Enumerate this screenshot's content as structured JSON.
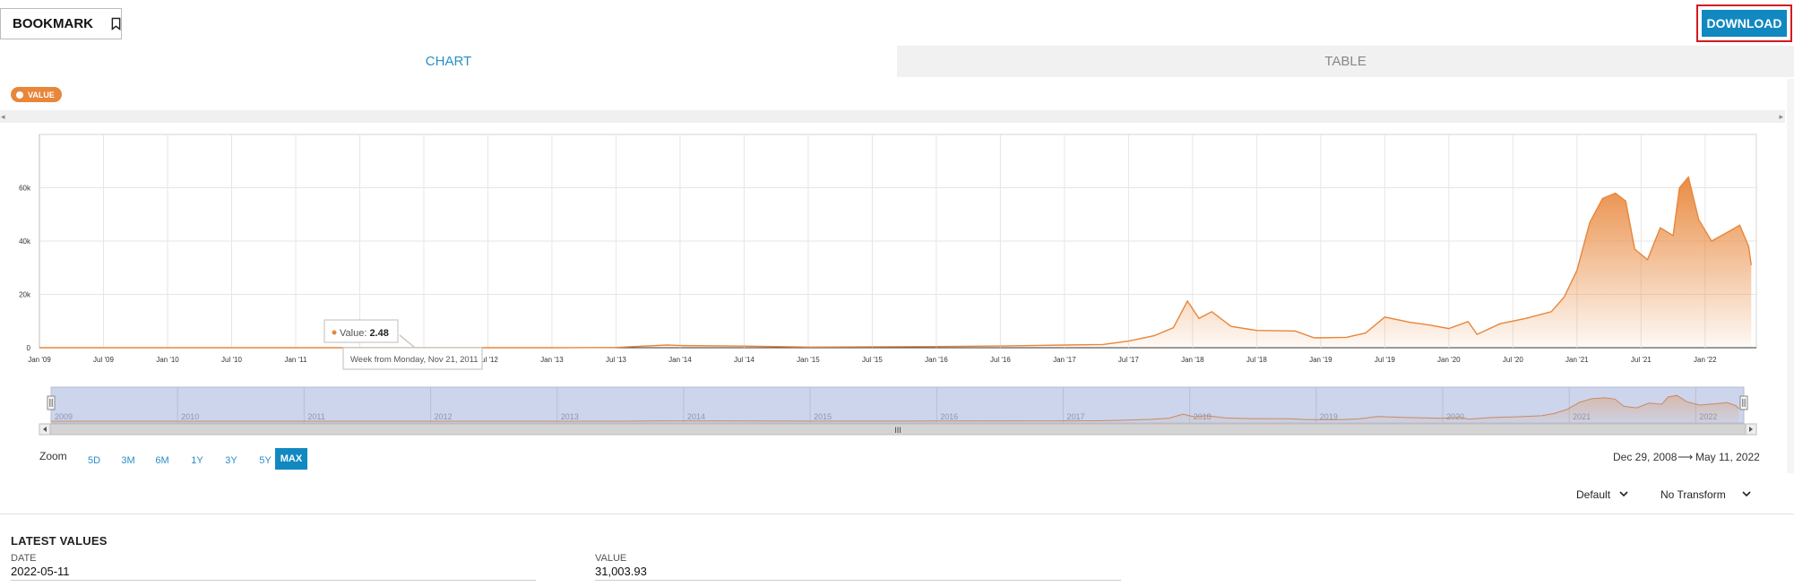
{
  "header": {
    "bookmark_label": "BOOKMARK",
    "download_label": "DOWNLOAD"
  },
  "tabs": [
    {
      "label": "CHART",
      "active": true
    },
    {
      "label": "TABLE",
      "active": false
    }
  ],
  "legend": {
    "label": "VALUE",
    "color": "#e8863a"
  },
  "tooltip": {
    "value_label": "Value:",
    "value": "2.48",
    "period": "Week from Monday, Nov 21, 2011"
  },
  "chart_data": {
    "type": "area",
    "x_tick_labels": [
      "Jan '09",
      "Jul '09",
      "Jan '10",
      "Jul '10",
      "Jan '11",
      "Jul '11",
      "Jan '12",
      "Jul '12",
      "Jan '13",
      "Jul '13",
      "Jan '14",
      "Jul '14",
      "Jan '15",
      "Jul '15",
      "Jan '16",
      "Jul '16",
      "Jan '17",
      "Jul '17",
      "Jan '18",
      "Jul '18",
      "Jan '19",
      "Jul '19",
      "Jan '20",
      "Jul '20",
      "Jan '21",
      "Jul '21",
      "Jan '22"
    ],
    "y_tick_labels": [
      "0",
      "20k",
      "40k",
      "60k"
    ],
    "ylim": [
      0,
      80000
    ],
    "series": [
      {
        "color": "#e8863a",
        "points": [
          {
            "x": 2009.0,
            "y": 0
          },
          {
            "x": 2010.0,
            "y": 0
          },
          {
            "x": 2011.0,
            "y": 1
          },
          {
            "x": 2011.89,
            "y": 2.48
          },
          {
            "x": 2012.5,
            "y": 7
          },
          {
            "x": 2013.0,
            "y": 13
          },
          {
            "x": 2013.5,
            "y": 100
          },
          {
            "x": 2013.9,
            "y": 1000
          },
          {
            "x": 2014.0,
            "y": 800
          },
          {
            "x": 2014.5,
            "y": 600
          },
          {
            "x": 2015.0,
            "y": 250
          },
          {
            "x": 2016.0,
            "y": 430
          },
          {
            "x": 2016.5,
            "y": 650
          },
          {
            "x": 2017.0,
            "y": 1000
          },
          {
            "x": 2017.3,
            "y": 1200
          },
          {
            "x": 2017.5,
            "y": 2500
          },
          {
            "x": 2017.7,
            "y": 4500
          },
          {
            "x": 2017.85,
            "y": 7500
          },
          {
            "x": 2017.96,
            "y": 17500
          },
          {
            "x": 2018.05,
            "y": 11000
          },
          {
            "x": 2018.15,
            "y": 13500
          },
          {
            "x": 2018.3,
            "y": 8000
          },
          {
            "x": 2018.5,
            "y": 6500
          },
          {
            "x": 2018.8,
            "y": 6300
          },
          {
            "x": 2018.95,
            "y": 3700
          },
          {
            "x": 2019.2,
            "y": 3900
          },
          {
            "x": 2019.35,
            "y": 5500
          },
          {
            "x": 2019.5,
            "y": 11500
          },
          {
            "x": 2019.7,
            "y": 9500
          },
          {
            "x": 2019.85,
            "y": 8500
          },
          {
            "x": 2020.0,
            "y": 7200
          },
          {
            "x": 2020.15,
            "y": 9800
          },
          {
            "x": 2020.22,
            "y": 5000
          },
          {
            "x": 2020.4,
            "y": 9000
          },
          {
            "x": 2020.6,
            "y": 11000
          },
          {
            "x": 2020.8,
            "y": 13500
          },
          {
            "x": 2020.9,
            "y": 19000
          },
          {
            "x": 2021.0,
            "y": 29000
          },
          {
            "x": 2021.1,
            "y": 47000
          },
          {
            "x": 2021.2,
            "y": 56000
          },
          {
            "x": 2021.3,
            "y": 58000
          },
          {
            "x": 2021.38,
            "y": 55000
          },
          {
            "x": 2021.45,
            "y": 37000
          },
          {
            "x": 2021.55,
            "y": 33000
          },
          {
            "x": 2021.65,
            "y": 45000
          },
          {
            "x": 2021.75,
            "y": 42000
          },
          {
            "x": 2021.8,
            "y": 60000
          },
          {
            "x": 2021.87,
            "y": 64000
          },
          {
            "x": 2021.95,
            "y": 48000
          },
          {
            "x": 2022.05,
            "y": 40000
          },
          {
            "x": 2022.2,
            "y": 44000
          },
          {
            "x": 2022.27,
            "y": 46000
          },
          {
            "x": 2022.34,
            "y": 38000
          },
          {
            "x": 2022.36,
            "y": 31003.93
          }
        ]
      }
    ]
  },
  "navigator": {
    "year_labels": [
      "2009",
      "2010",
      "2011",
      "2012",
      "2013",
      "2014",
      "2015",
      "2016",
      "2017",
      "2018",
      "2019",
      "2020",
      "2021",
      "2022"
    ],
    "handle_glyph": "III"
  },
  "zoom": {
    "label": "Zoom",
    "options": [
      "5D",
      "3M",
      "6M",
      "1Y",
      "3Y",
      "5Y",
      "MAX"
    ],
    "active": "MAX"
  },
  "date_range": {
    "from": "Dec 29, 2008",
    "arrow": "⟶",
    "to": "May 11, 2022"
  },
  "controls": {
    "frequency": "Default",
    "transform": "No Transform"
  },
  "latest": {
    "title": "LATEST VALUES",
    "date_label": "DATE",
    "date_value": "2022-05-11",
    "value_label": "VALUE",
    "value_value": "31,003.93"
  }
}
